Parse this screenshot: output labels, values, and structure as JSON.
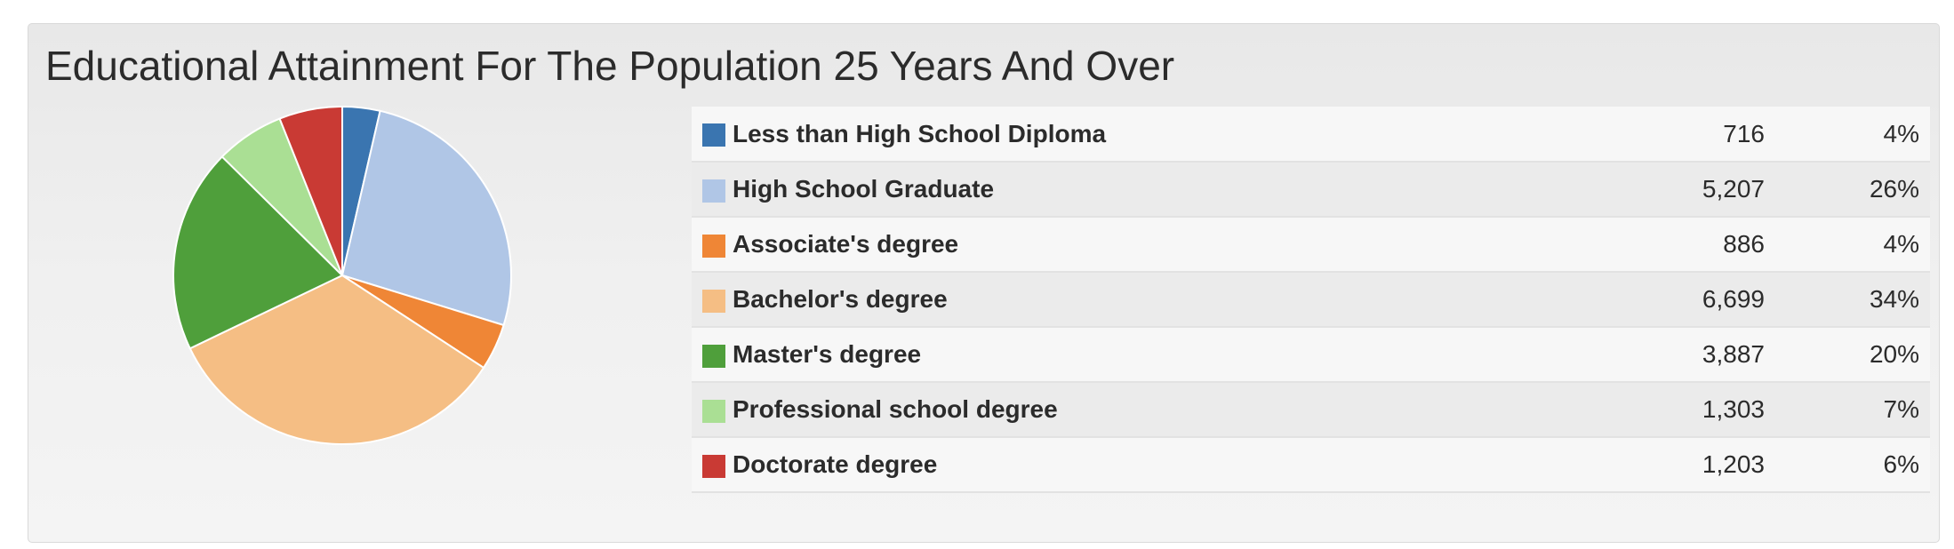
{
  "colors": {
    "less_than_hs": "#3a75b0",
    "hs_grad": "#b0c6e6",
    "associates": "#ef8636",
    "bachelors": "#f5be84",
    "masters": "#4f9f3b",
    "professional": "#aadf94",
    "doctorate": "#c93a34"
  },
  "chart_data": {
    "type": "pie",
    "title": "Educational Attainment For The Population 25 Years And Over",
    "categories": [
      "Less than High School Diploma",
      "High School Graduate",
      "Associate's degree",
      "Bachelor's degree",
      "Master's degree",
      "Professional school degree",
      "Doctorate degree"
    ],
    "values": [
      716,
      5207,
      886,
      6699,
      3887,
      1303,
      1203
    ],
    "percents": [
      "4%",
      "26%",
      "4%",
      "34%",
      "20%",
      "7%",
      "6%"
    ],
    "display_values": [
      "716",
      "5,207",
      "886",
      "6,699",
      "3,887",
      "1,303",
      "1,203"
    ],
    "colors": [
      "#3a75b0",
      "#b0c6e6",
      "#ef8636",
      "#f5be84",
      "#4f9f3b",
      "#aadf94",
      "#c93a34"
    ],
    "start": "12 o'clock",
    "direction": "clockwise"
  }
}
